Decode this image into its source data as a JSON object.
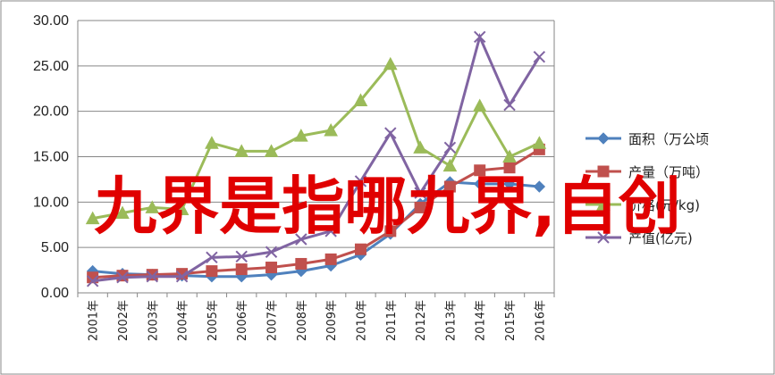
{
  "chart_data": {
    "type": "line",
    "categories": [
      "2001年",
      "2002年",
      "2003年",
      "2004年",
      "2005年",
      "2006年",
      "2007年",
      "2008年",
      "2009年",
      "2010年",
      "2011年",
      "2012年",
      "2013年",
      "2014年",
      "2015年",
      "2016年"
    ],
    "ylim": [
      0,
      30
    ],
    "yticks": [
      "0.00",
      "5.00",
      "10.00",
      "15.00",
      "20.00",
      "25.00",
      "30.00"
    ],
    "grid": "horizontal",
    "legend_position": "right",
    "series": [
      {
        "name": "面积（万公顷",
        "color": "#4f81bd",
        "marker": "diamond",
        "values": [
          2.4,
          2.1,
          2.0,
          1.9,
          1.8,
          1.8,
          2.0,
          2.4,
          3.0,
          4.2,
          6.5,
          9.8,
          12.2,
          12.0,
          12.0,
          11.7
        ]
      },
      {
        "name": "产量（万吨）",
        "color": "#c0504d",
        "marker": "square",
        "values": [
          1.7,
          1.9,
          2.0,
          2.1,
          2.4,
          2.6,
          2.8,
          3.2,
          3.7,
          4.8,
          6.8,
          9.4,
          11.7,
          13.5,
          13.8,
          15.8
        ]
      },
      {
        "name": "价格(元/kg)",
        "color": "#9bbb59",
        "marker": "triangle",
        "values": [
          8.2,
          8.8,
          9.4,
          9.2,
          16.5,
          15.6,
          15.6,
          17.3,
          17.9,
          21.2,
          25.2,
          16.0,
          14.0,
          20.6,
          15.0,
          16.5
        ]
      },
      {
        "name": "产值(亿元)",
        "color": "#8064a2",
        "marker": "x",
        "values": [
          1.3,
          1.7,
          1.8,
          1.8,
          3.9,
          4.0,
          4.5,
          5.9,
          6.8,
          12.3,
          17.6,
          11.0,
          16.0,
          28.2,
          20.7,
          26.0
        ]
      }
    ]
  },
  "overlay_text": "九界是指哪九界,自创"
}
